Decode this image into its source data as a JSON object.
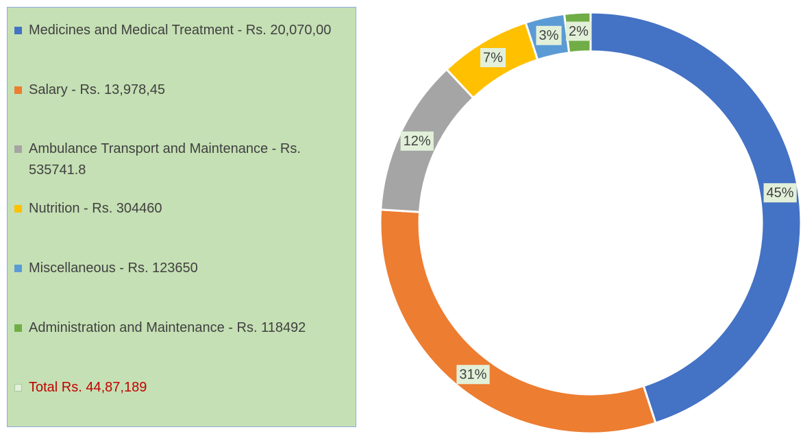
{
  "chart_data": {
    "type": "donut",
    "categories": [
      "Medicines and Medical Treatment - Rs. 20,070,00",
      "Salary - Rs. 13,978,45",
      "Ambulance Transport and Maintenance - Rs. 535741.8",
      "Nutrition - Rs. 304460",
      "Miscellaneous - Rs. 123650",
      "Administration and Maintenance - Rs. 118492"
    ],
    "values": [
      45,
      31,
      12,
      7,
      3,
      2
    ],
    "value_labels": [
      "45%",
      "31%",
      "12%",
      "7%",
      "3%",
      "2%"
    ],
    "colors": [
      "#4472c4",
      "#ed7d31",
      "#a5a5a5",
      "#ffc000",
      "#5b9bd5",
      "#70ad47"
    ],
    "total_label": "Total  Rs. 44,87,189"
  }
}
